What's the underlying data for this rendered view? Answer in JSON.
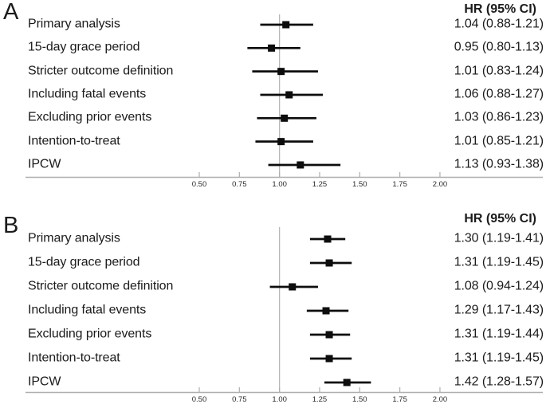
{
  "colors": {
    "text": "#1b1b1b",
    "marker": "#0d0d0d",
    "ci_line": "#0d0d0d",
    "axis_line": "#aeaeae",
    "reference_line": "#b8b8b8"
  },
  "chart_data": [
    {
      "type": "forest",
      "panel": "A",
      "header": "HR (95% CI)",
      "xlabel": "",
      "xlim": [
        0.35,
        2.2
      ],
      "x_ticks": [
        0.5,
        0.75,
        1.0,
        1.25,
        1.5,
        1.75,
        2.0
      ],
      "x_tick_labels": [
        "0.50",
        "0.75",
        "1.00",
        "1.25",
        "1.50",
        "1.75",
        "2.00"
      ],
      "reference_line": 1.0,
      "rows": [
        {
          "label": "Primary analysis",
          "hr": 1.04,
          "ci_low": 0.88,
          "ci_high": 1.21,
          "text": "1.04 (0.88-1.21)"
        },
        {
          "label": "15-day grace period",
          "hr": 0.95,
          "ci_low": 0.8,
          "ci_high": 1.13,
          "text": "0.95 (0.80-1.13)"
        },
        {
          "label": "Stricter outcome definition",
          "hr": 1.01,
          "ci_low": 0.83,
          "ci_high": 1.24,
          "text": "1.01 (0.83-1.24)"
        },
        {
          "label": "Including fatal events",
          "hr": 1.06,
          "ci_low": 0.88,
          "ci_high": 1.27,
          "text": "1.06 (0.88-1.27)"
        },
        {
          "label": "Excluding prior events",
          "hr": 1.03,
          "ci_low": 0.86,
          "ci_high": 1.23,
          "text": "1.03 (0.86-1.23)"
        },
        {
          "label": "Intention-to-treat",
          "hr": 1.01,
          "ci_low": 0.85,
          "ci_high": 1.21,
          "text": "1.01 (0.85-1.21)"
        },
        {
          "label": "IPCW",
          "hr": 1.13,
          "ci_low": 0.93,
          "ci_high": 1.38,
          "text": "1.13 (0.93-1.38)"
        }
      ]
    },
    {
      "type": "forest",
      "panel": "B",
      "header": "HR (95% CI)",
      "xlabel": "",
      "xlim": [
        0.35,
        2.2
      ],
      "x_ticks": [
        0.5,
        0.75,
        1.0,
        1.25,
        1.5,
        1.75,
        2.0
      ],
      "x_tick_labels": [
        "0.50",
        "0.75",
        "1.00",
        "1.25",
        "1.50",
        "1.75",
        "2.00"
      ],
      "reference_line": 1.0,
      "rows": [
        {
          "label": "Primary analysis",
          "hr": 1.3,
          "ci_low": 1.19,
          "ci_high": 1.41,
          "text": "1.30 (1.19-1.41)"
        },
        {
          "label": "15-day grace period",
          "hr": 1.31,
          "ci_low": 1.19,
          "ci_high": 1.45,
          "text": "1.31 (1.19-1.45)"
        },
        {
          "label": "Stricter outcome definition",
          "hr": 1.08,
          "ci_low": 0.94,
          "ci_high": 1.24,
          "text": "1.08 (0.94-1.24)"
        },
        {
          "label": "Including fatal events",
          "hr": 1.29,
          "ci_low": 1.17,
          "ci_high": 1.43,
          "text": "1.29 (1.17-1.43)"
        },
        {
          "label": "Excluding prior events",
          "hr": 1.31,
          "ci_low": 1.19,
          "ci_high": 1.44,
          "text": "1.31 (1.19-1.44)"
        },
        {
          "label": "Intention-to-treat",
          "hr": 1.31,
          "ci_low": 1.19,
          "ci_high": 1.45,
          "text": "1.31 (1.19-1.45)"
        },
        {
          "label": "IPCW",
          "hr": 1.42,
          "ci_low": 1.28,
          "ci_high": 1.57,
          "text": "1.42 (1.28-1.57)"
        }
      ]
    }
  ]
}
